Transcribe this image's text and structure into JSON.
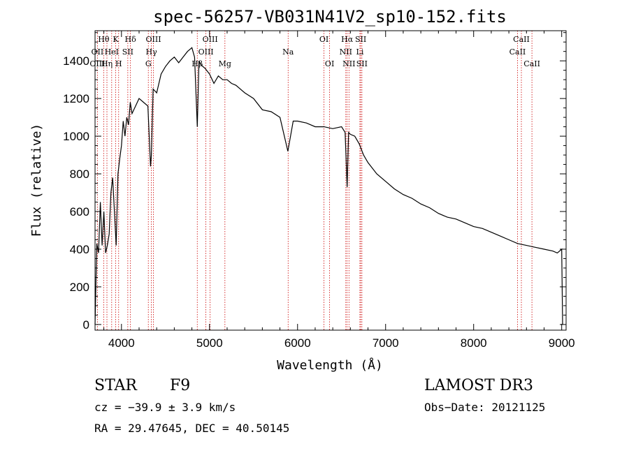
{
  "chart_data": {
    "type": "line",
    "title": "spec-56257-VB031N41V2_sp10-152.fits",
    "xlabel": "Wavelength (Å)",
    "ylabel": "Flux (relative)",
    "xlim": [
      3700,
      9050
    ],
    "ylim": [
      -30,
      1560
    ],
    "xticks": [
      4000,
      5000,
      6000,
      7000,
      8000,
      9000
    ],
    "yticks": [
      0,
      200,
      400,
      600,
      800,
      1000,
      1200,
      1400
    ],
    "line_color": "#000000",
    "marker_color": "#cc0000",
    "series": [
      {
        "x": [
          3700,
          3720,
          3740,
          3760,
          3780,
          3800,
          3820,
          3840,
          3860,
          3880,
          3900,
          3920,
          3940,
          3960,
          3980,
          4000,
          4020,
          4040,
          4060,
          4080,
          4100,
          4120,
          4150,
          4200,
          4250,
          4300,
          4330,
          4340,
          4360,
          4400,
          4450,
          4500,
          4550,
          4600,
          4650,
          4700,
          4750,
          4800,
          4830,
          4861,
          4880,
          4900,
          4950,
          5000,
          5050,
          5100,
          5150,
          5200,
          5250,
          5300,
          5400,
          5500,
          5600,
          5700,
          5800,
          5890,
          5950,
          6000,
          6100,
          6200,
          6300,
          6400,
          6500,
          6540,
          6563,
          6580,
          6600,
          6650,
          6700,
          6750,
          6800,
          6900,
          7000,
          7100,
          7200,
          7300,
          7400,
          7500,
          7600,
          7700,
          7800,
          7900,
          8000,
          8100,
          8200,
          8300,
          8400,
          8500,
          8600,
          8700,
          8800,
          8900,
          8950,
          9000,
          9010
        ],
        "y": [
          0,
          430,
          380,
          650,
          420,
          600,
          380,
          420,
          480,
          700,
          780,
          600,
          420,
          800,
          880,
          950,
          1080,
          1000,
          1100,
          1060,
          1180,
          1120,
          1150,
          1200,
          1180,
          1160,
          840,
          900,
          1250,
          1230,
          1330,
          1370,
          1400,
          1420,
          1390,
          1420,
          1450,
          1470,
          1420,
          1050,
          1400,
          1380,
          1360,
          1330,
          1280,
          1320,
          1300,
          1300,
          1280,
          1270,
          1230,
          1200,
          1140,
          1130,
          1100,
          920,
          1080,
          1080,
          1070,
          1050,
          1050,
          1040,
          1050,
          1020,
          730,
          1020,
          1010,
          1000,
          960,
          900,
          860,
          800,
          760,
          720,
          690,
          670,
          640,
          620,
          590,
          570,
          560,
          540,
          520,
          510,
          490,
          470,
          450,
          430,
          420,
          410,
          400,
          390,
          380,
          400,
          0
        ]
      }
    ],
    "line_markers": [
      {
        "label": "Hθ",
        "wl": 3798,
        "row": 1
      },
      {
        "label": "OII",
        "wl": 3727,
        "row": 2
      },
      {
        "label": "OIII",
        "wl": 3727,
        "row": 3
      },
      {
        "label": "K",
        "wl": 3934,
        "row": 1
      },
      {
        "label": "HeI",
        "wl": 3889,
        "row": 2
      },
      {
        "label": "Hη",
        "wl": 3835,
        "row": 3
      },
      {
        "label": "Hδ",
        "wl": 4102,
        "row": 1
      },
      {
        "label": "SII",
        "wl": 4072,
        "row": 2
      },
      {
        "label": "H",
        "wl": 3968,
        "row": 3
      },
      {
        "label": "OIII",
        "wl": 4363,
        "row": 1
      },
      {
        "label": "Hγ",
        "wl": 4340,
        "row": 2
      },
      {
        "label": "G",
        "wl": 4305,
        "row": 3
      },
      {
        "label": "OIII",
        "wl": 5007,
        "row": 1
      },
      {
        "label": "OIII",
        "wl": 4959,
        "row": 2
      },
      {
        "label": "Hβ",
        "wl": 4861,
        "row": 3
      },
      {
        "label": "Mg",
        "wl": 5175,
        "row": 3
      },
      {
        "label": "Na",
        "wl": 5893,
        "row": 2
      },
      {
        "label": "OI",
        "wl": 6300,
        "row": 1
      },
      {
        "label": "OI",
        "wl": 6364,
        "row": 3
      },
      {
        "label": "Hα",
        "wl": 6563,
        "row": 1
      },
      {
        "label": "SII",
        "wl": 6717,
        "row": 1
      },
      {
        "label": "NII",
        "wl": 6548,
        "row": 2
      },
      {
        "label": "Li",
        "wl": 6708,
        "row": 2
      },
      {
        "label": "NII",
        "wl": 6584,
        "row": 3
      },
      {
        "label": "SII",
        "wl": 6731,
        "row": 3
      },
      {
        "label": "CaII",
        "wl": 8542,
        "row": 1
      },
      {
        "label": "CaII",
        "wl": 8498,
        "row": 2
      },
      {
        "label": "CaII",
        "wl": 8662,
        "row": 3
      }
    ]
  },
  "info": {
    "class": "STAR",
    "subclass": "F9",
    "survey": "LAMOST DR3",
    "cz": "cz = −39.9 ± 3.9 km/s",
    "obs_date": "Obs−Date: 20121125",
    "radec": "RA =  29.47645, DEC =  40.50145"
  }
}
